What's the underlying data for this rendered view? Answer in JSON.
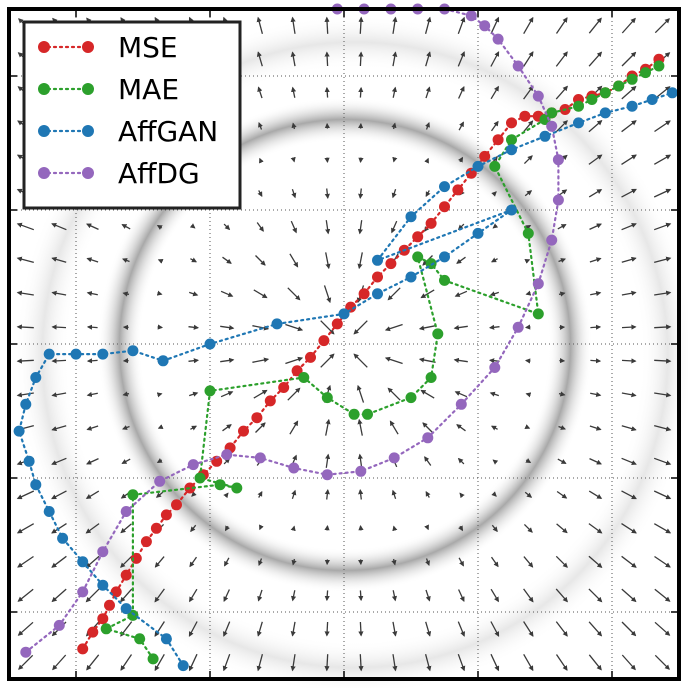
{
  "chart_data": {
    "type": "scatter",
    "title": "",
    "xlabel": "",
    "ylabel": "",
    "xlim": [
      -1.0,
      1.0
    ],
    "ylim": [
      -1.0,
      1.0
    ],
    "grid": true,
    "legend_position": "top-left",
    "background": {
      "vector_field": true,
      "ring": {
        "cx": 0.0,
        "cy": 0.0,
        "r": 0.6
      }
    },
    "legend": [
      {
        "label": "MSE",
        "color": "#d62728"
      },
      {
        "label": "MAE",
        "color": "#2ca02c"
      },
      {
        "label": "AffGAN",
        "color": "#1f77b4"
      },
      {
        "label": "AffDG",
        "color": "#9467bd"
      }
    ],
    "series": [
      {
        "name": "MSE",
        "color": "#d62728",
        "x": [
          -0.78,
          -0.75,
          -0.72,
          -0.7,
          -0.68,
          -0.65,
          -0.62,
          -0.59,
          -0.56,
          -0.53,
          -0.5,
          -0.46,
          -0.42,
          -0.38,
          -0.34,
          -0.3,
          -0.26,
          -0.22,
          -0.18,
          -0.14,
          -0.1,
          -0.06,
          -0.02,
          0.02,
          0.06,
          0.1,
          0.14,
          0.18,
          0.22,
          0.26,
          0.3,
          0.34,
          0.38,
          0.42,
          0.46,
          0.5,
          0.54,
          0.58,
          0.62,
          0.66,
          0.7,
          0.74,
          0.78,
          0.82,
          0.86,
          0.9,
          0.94
        ],
        "y": [
          -0.91,
          -0.86,
          -0.82,
          -0.78,
          -0.74,
          -0.69,
          -0.64,
          -0.59,
          -0.55,
          -0.51,
          -0.48,
          -0.43,
          -0.39,
          -0.35,
          -0.31,
          -0.26,
          -0.22,
          -0.17,
          -0.13,
          -0.08,
          -0.04,
          0.01,
          0.06,
          0.11,
          0.15,
          0.2,
          0.24,
          0.28,
          0.32,
          0.36,
          0.41,
          0.46,
          0.51,
          0.56,
          0.61,
          0.66,
          0.68,
          0.68,
          0.69,
          0.7,
          0.73,
          0.74,
          0.75,
          0.77,
          0.8,
          0.82,
          0.85
        ]
      },
      {
        "name": "MAE",
        "color": "#2ca02c",
        "x": [
          -0.57,
          -0.61,
          -0.71,
          -0.63,
          -0.63,
          -0.37,
          -0.32,
          -0.43,
          -0.4,
          -0.12,
          -0.05,
          0.03,
          0.07,
          0.2,
          0.26,
          0.28,
          0.22,
          0.26,
          0.3,
          0.58,
          0.55,
          0.45,
          0.5,
          0.6,
          0.62,
          0.7,
          0.74,
          0.78,
          0.82,
          0.86,
          0.9,
          0.94
        ],
        "y": [
          -0.94,
          -0.88,
          -0.85,
          -0.81,
          -0.45,
          -0.42,
          -0.43,
          -0.4,
          -0.14,
          -0.1,
          -0.16,
          -0.21,
          -0.21,
          -0.16,
          -0.1,
          0.03,
          0.26,
          0.24,
          0.19,
          0.09,
          0.33,
          0.53,
          0.61,
          0.67,
          0.69,
          0.71,
          0.73,
          0.75,
          0.77,
          0.79,
          0.81,
          0.83
        ]
      },
      {
        "name": "AffGAN",
        "color": "#1f77b4",
        "x": [
          -0.48,
          -0.53,
          -0.65,
          -0.72,
          -0.78,
          -0.84,
          -0.88,
          -0.92,
          -0.94,
          -0.97,
          -0.95,
          -0.92,
          -0.88,
          -0.8,
          -0.72,
          -0.63,
          -0.54,
          -0.4,
          -0.2,
          0.0,
          0.1,
          0.2,
          0.3,
          0.4,
          0.5,
          0.1,
          0.2,
          0.3,
          0.4,
          0.5,
          0.6,
          0.7,
          0.78,
          0.86,
          0.92,
          0.98
        ],
        "y": [
          -0.96,
          -0.88,
          -0.79,
          -0.72,
          -0.65,
          -0.58,
          -0.5,
          -0.42,
          -0.35,
          -0.26,
          -0.18,
          -0.1,
          -0.03,
          -0.03,
          -0.03,
          -0.02,
          -0.05,
          0.0,
          0.06,
          0.09,
          0.15,
          0.2,
          0.26,
          0.33,
          0.4,
          0.25,
          0.38,
          0.47,
          0.53,
          0.58,
          0.62,
          0.66,
          0.69,
          0.71,
          0.73,
          0.75
        ]
      },
      {
        "name": "AffDG",
        "color": "#9467bd",
        "x": [
          -0.95,
          -0.85,
          -0.78,
          -0.72,
          -0.65,
          -0.55,
          -0.45,
          -0.35,
          -0.25,
          -0.15,
          -0.05,
          0.05,
          0.15,
          0.25,
          0.35,
          0.45,
          0.52,
          0.58,
          0.62,
          0.64,
          0.64,
          0.62,
          0.58,
          0.52,
          0.46,
          0.42,
          0.38,
          0.3,
          0.22,
          0.14,
          0.06,
          -0.02
        ],
        "y": [
          -0.92,
          -0.84,
          -0.74,
          -0.62,
          -0.5,
          -0.41,
          -0.36,
          -0.33,
          -0.34,
          -0.37,
          -0.39,
          -0.38,
          -0.34,
          -0.28,
          -0.18,
          -0.07,
          0.05,
          0.18,
          0.31,
          0.43,
          0.55,
          0.65,
          0.74,
          0.83,
          0.91,
          0.95,
          0.98,
          1.0,
          1.0,
          1.0,
          1.0,
          1.0
        ]
      }
    ]
  }
}
